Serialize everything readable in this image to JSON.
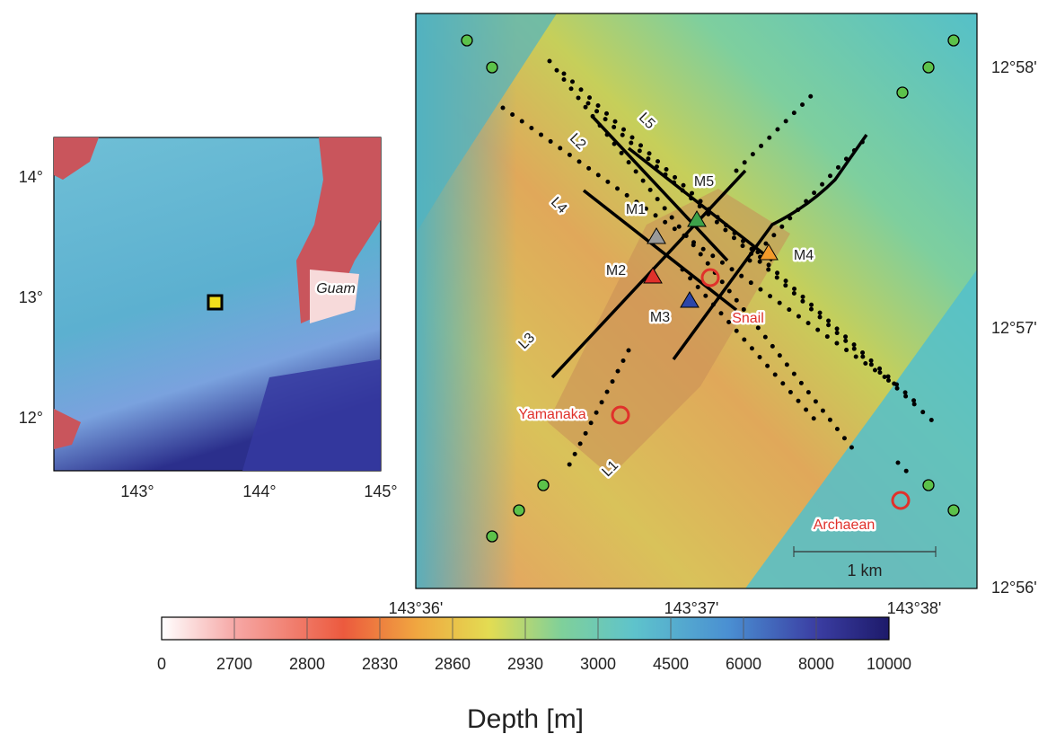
{
  "overview_map": {
    "label": "Guam",
    "lat_ticks": [
      "14°",
      "13°",
      "12°"
    ],
    "lon_ticks": [
      "143°",
      "144°",
      "145°"
    ]
  },
  "detail_map": {
    "lat_ticks": [
      "12°58'",
      "12°57'",
      "12°56'"
    ],
    "lon_ticks": [
      "143°36'",
      "143°37'",
      "143°38'"
    ],
    "lines": [
      "L1",
      "L2",
      "L3",
      "L4",
      "L5"
    ],
    "markers": [
      "M1",
      "M2",
      "M3",
      "M4",
      "M5"
    ],
    "sites": [
      "Snail",
      "Yamanaka",
      "Archaean"
    ],
    "scale_bar": "1 km"
  },
  "colorbar": {
    "title": "Depth [m]",
    "ticks": [
      0,
      2700,
      2800,
      2830,
      2860,
      2930,
      3000,
      4500,
      6000,
      8000,
      10000
    ]
  }
}
